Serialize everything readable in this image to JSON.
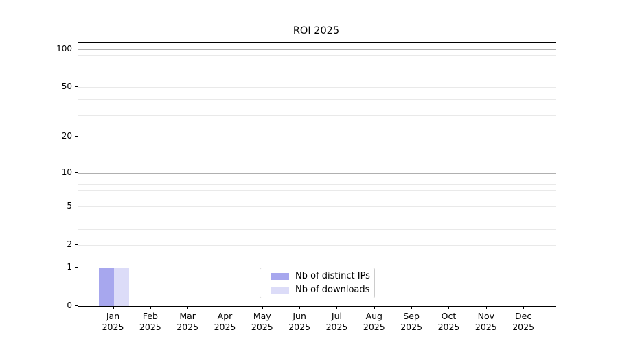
{
  "chart_data": {
    "type": "bar",
    "title": "ROI 2025",
    "x_tick_months": [
      "Jan",
      "Feb",
      "Mar",
      "Apr",
      "May",
      "Jun",
      "Jul",
      "Aug",
      "Sep",
      "Oct",
      "Nov",
      "Dec"
    ],
    "x_tick_year": "2025",
    "series": [
      {
        "name": "Nb of distinct IPs",
        "color": "#a7a7ee",
        "values": [
          1,
          0,
          0,
          0,
          0,
          0,
          0,
          0,
          0,
          0,
          0,
          0
        ]
      },
      {
        "name": "Nb of downloads",
        "color": "#dcdcf8",
        "values": [
          1,
          0,
          0,
          0,
          0,
          0,
          0,
          0,
          0,
          0,
          0,
          0
        ]
      }
    ],
    "yaxis": {
      "scale": "log1p",
      "ylim": [
        0,
        113
      ],
      "labeled_ticks": [
        0,
        1,
        2,
        5,
        10,
        20,
        50,
        100
      ],
      "major_gridlines": [
        1,
        10,
        100
      ],
      "minor_gridlines": [
        2,
        3,
        4,
        5,
        6,
        7,
        8,
        9,
        20,
        30,
        40,
        50,
        60,
        70,
        80,
        90
      ]
    },
    "legend": {
      "position": "bottom-center"
    },
    "colors": {
      "spine": "#000000",
      "major_grid": "#b0b0b0",
      "minor_grid": "#e9e9e9",
      "legend_border": "#cccccc"
    }
  }
}
